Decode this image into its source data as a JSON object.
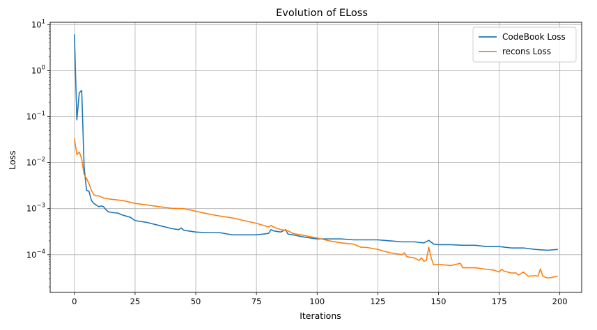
{
  "chart_data": {
    "type": "line",
    "title": "Evolution of ELoss",
    "xlabel": "Iterations",
    "ylabel": "Loss",
    "xlim": [
      -10,
      209
    ],
    "ylim_log10": [
      -4.82,
      1.05
    ],
    "yscale": "log",
    "grid": true,
    "legend_placement": "top-right",
    "x_ticks": [
      0,
      25,
      50,
      75,
      100,
      125,
      150,
      175,
      200
    ],
    "y_ticks": [
      {
        "base": "10",
        "exp": "1",
        "value": 10
      },
      {
        "base": "10",
        "exp": "0",
        "value": 1
      },
      {
        "base": "10",
        "exp": "−1",
        "value": 0.1
      },
      {
        "base": "10",
        "exp": "−2",
        "value": 0.01
      },
      {
        "base": "10",
        "exp": "−3",
        "value": 0.001
      },
      {
        "base": "10",
        "exp": "−4",
        "value": 0.0001
      }
    ],
    "series": [
      {
        "name": "CodeBook Loss",
        "color": "#1f77b4",
        "points": [
          [
            0,
            6.0
          ],
          [
            1,
            0.085
          ],
          [
            2,
            0.33
          ],
          [
            3,
            0.37
          ],
          [
            4,
            0.008
          ],
          [
            5,
            0.0025
          ],
          [
            6,
            0.0024
          ],
          [
            7,
            0.0015
          ],
          [
            8,
            0.0013
          ],
          [
            9,
            0.0012
          ],
          [
            10,
            0.0011
          ],
          [
            11,
            0.00115
          ],
          [
            12,
            0.0011
          ],
          [
            13,
            0.00095
          ],
          [
            14,
            0.00085
          ],
          [
            16,
            0.00082
          ],
          [
            18,
            0.0008
          ],
          [
            20,
            0.00072
          ],
          [
            23,
            0.00065
          ],
          [
            25,
            0.00055
          ],
          [
            30,
            0.0005
          ],
          [
            35,
            0.00043
          ],
          [
            40,
            0.00037
          ],
          [
            43,
            0.00035
          ],
          [
            44,
            0.00038
          ],
          [
            45,
            0.00034
          ],
          [
            50,
            0.00031
          ],
          [
            55,
            0.0003
          ],
          [
            60,
            0.0003
          ],
          [
            65,
            0.00027
          ],
          [
            70,
            0.00027
          ],
          [
            75,
            0.00027
          ],
          [
            80,
            0.00029
          ],
          [
            81,
            0.00035
          ],
          [
            82,
            0.00033
          ],
          [
            85,
            0.00031
          ],
          [
            87,
            0.00035
          ],
          [
            88,
            0.00028
          ],
          [
            90,
            0.00027
          ],
          [
            95,
            0.00024
          ],
          [
            100,
            0.00022
          ],
          [
            105,
            0.00022
          ],
          [
            110,
            0.00022
          ],
          [
            115,
            0.00021
          ],
          [
            120,
            0.00021
          ],
          [
            125,
            0.00021
          ],
          [
            130,
            0.0002
          ],
          [
            135,
            0.00019
          ],
          [
            140,
            0.00019
          ],
          [
            144,
            0.00018
          ],
          [
            146,
            0.000205
          ],
          [
            148,
            0.00017
          ],
          [
            150,
            0.000165
          ],
          [
            155,
            0.000165
          ],
          [
            160,
            0.00016
          ],
          [
            165,
            0.00016
          ],
          [
            170,
            0.00015
          ],
          [
            175,
            0.00015
          ],
          [
            180,
            0.00014
          ],
          [
            185,
            0.00014
          ],
          [
            190,
            0.00013
          ],
          [
            195,
            0.000125
          ],
          [
            199,
            0.00013
          ]
        ]
      },
      {
        "name": "recons Loss",
        "color": "#ff7f0e",
        "points": [
          [
            0,
            0.033
          ],
          [
            1,
            0.015
          ],
          [
            2,
            0.017
          ],
          [
            3,
            0.012
          ],
          [
            4,
            0.0055
          ],
          [
            5,
            0.0045
          ],
          [
            6,
            0.0035
          ],
          [
            7,
            0.0025
          ],
          [
            8,
            0.002
          ],
          [
            9,
            0.0019
          ],
          [
            10,
            0.0019
          ],
          [
            11,
            0.0018
          ],
          [
            12,
            0.0017
          ],
          [
            15,
            0.0016
          ],
          [
            20,
            0.0015
          ],
          [
            25,
            0.0013
          ],
          [
            30,
            0.0012
          ],
          [
            35,
            0.0011
          ],
          [
            40,
            0.00102
          ],
          [
            45,
            0.001
          ],
          [
            50,
            0.00088
          ],
          [
            55,
            0.00077
          ],
          [
            60,
            0.00069
          ],
          [
            65,
            0.00063
          ],
          [
            70,
            0.00055
          ],
          [
            75,
            0.00048
          ],
          [
            80,
            0.0004
          ],
          [
            81,
            0.00043
          ],
          [
            82,
            0.0004
          ],
          [
            85,
            0.00035
          ],
          [
            88,
            0.00033
          ],
          [
            90,
            0.00029
          ],
          [
            95,
            0.00026
          ],
          [
            100,
            0.00023
          ],
          [
            105,
            0.0002
          ],
          [
            110,
            0.00018
          ],
          [
            115,
            0.00017
          ],
          [
            118,
            0.000145
          ],
          [
            120,
            0.000145
          ],
          [
            125,
            0.00013
          ],
          [
            130,
            0.00011
          ],
          [
            135,
            0.0001
          ],
          [
            136,
            0.00011
          ],
          [
            137,
            9e-05
          ],
          [
            140,
            8.5e-05
          ],
          [
            142,
            7.5e-05
          ],
          [
            143,
            8.5e-05
          ],
          [
            144,
            7.2e-05
          ],
          [
            145,
            7.5e-05
          ],
          [
            146,
            0.000145
          ],
          [
            147,
            8.5e-05
          ],
          [
            148,
            6e-05
          ],
          [
            150,
            6.2e-05
          ],
          [
            155,
            5.8e-05
          ],
          [
            158,
            6.3e-05
          ],
          [
            159,
            6.5e-05
          ],
          [
            160,
            5.2e-05
          ],
          [
            165,
            5.2e-05
          ],
          [
            170,
            4.8e-05
          ],
          [
            173,
            4.6e-05
          ],
          [
            175,
            4.2e-05
          ],
          [
            176,
            4.8e-05
          ],
          [
            177,
            4.4e-05
          ],
          [
            180,
            4e-05
          ],
          [
            182,
            4e-05
          ],
          [
            183,
            3.6e-05
          ],
          [
            185,
            4.2e-05
          ],
          [
            187,
            3.4e-05
          ],
          [
            190,
            3.5e-05
          ],
          [
            191,
            3.4e-05
          ],
          [
            192,
            4.9e-05
          ],
          [
            193,
            3.4e-05
          ],
          [
            195,
            3.1e-05
          ],
          [
            198,
            3.3e-05
          ],
          [
            199,
            3.4e-05
          ]
        ]
      }
    ]
  }
}
